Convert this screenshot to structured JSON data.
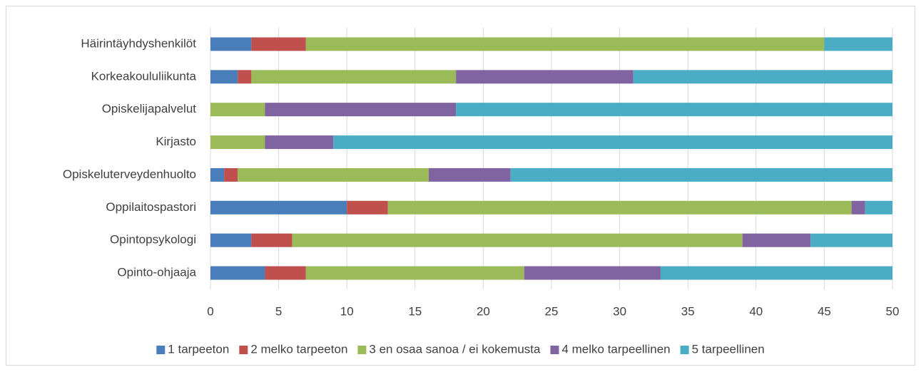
{
  "chart_data": {
    "type": "stacked-barh",
    "categories": [
      "Häirintäyhdyshenkilöt",
      "Korkeakoululiikunta",
      "Opiskelijapalvelut",
      "Kirjasto",
      "Opiskeluterveydenhuolto",
      "Oppilaitospastori",
      "Opintopsykologi",
      "Opinto-ohjaaja"
    ],
    "series": [
      {
        "name": "1 tarpeeton",
        "color": "#4a7ebb",
        "values": [
          3,
          2,
          0,
          0,
          1,
          10,
          3,
          4
        ]
      },
      {
        "name": "2 melko tarpeeton",
        "color": "#c0504d",
        "values": [
          4,
          1,
          0,
          0,
          1,
          3,
          3,
          3
        ]
      },
      {
        "name": "3 en osaa sanoa / ei kokemusta",
        "color": "#9bbb59",
        "values": [
          38,
          15,
          4,
          4,
          14,
          34,
          33,
          16
        ]
      },
      {
        "name": "4 melko tarpeellinen",
        "color": "#8064a2",
        "values": [
          0,
          13,
          14,
          5,
          6,
          1,
          5,
          10
        ]
      },
      {
        "name": "5 tarpeellinen",
        "color": "#4bacc6",
        "values": [
          5,
          19,
          32,
          41,
          28,
          2,
          6,
          17
        ]
      }
    ],
    "xlim": [
      0,
      50
    ],
    "xticks": [
      0,
      5,
      10,
      15,
      20,
      25,
      30,
      35,
      40,
      45,
      50
    ],
    "grid": true,
    "legend": "bottom"
  }
}
